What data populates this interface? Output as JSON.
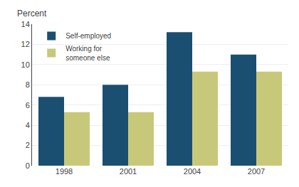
{
  "chart_data": {
    "type": "bar",
    "ylabel": "Percent",
    "categories": [
      "1998",
      "2001",
      "2004",
      "2007"
    ],
    "series": [
      {
        "name": "Self-employed",
        "color": "#1a4f72",
        "values": [
          6.8,
          8.0,
          13.2,
          11.0
        ]
      },
      {
        "name": "Working for\nsomeone else",
        "color": "#c8c87a",
        "values": [
          5.3,
          5.3,
          9.3,
          9.3
        ]
      }
    ],
    "ylim": [
      0,
      14
    ],
    "yticks": [
      0,
      2,
      4,
      6,
      8,
      10,
      12,
      14
    ],
    "grid": true,
    "legend": "upper left"
  }
}
